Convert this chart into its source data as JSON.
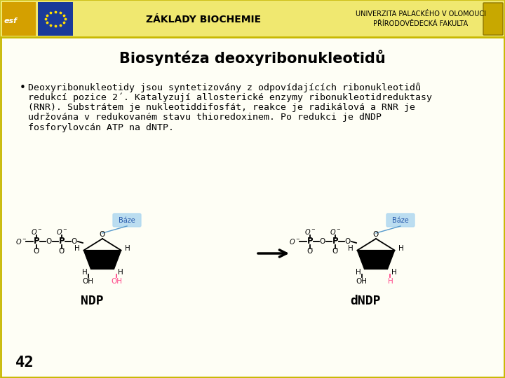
{
  "bg_color": "#fefef5",
  "header_bg": "#f0e870",
  "border_color": "#c8b800",
  "title": "Biosyntéza deoxyribonukleotidů",
  "title_fontsize": 15,
  "bullet_lines": [
    "Deoxyribonukleotidy jsou syntetizovány z odpovídajících ribonukleotidů",
    "redukcí pozice 2´. Katalyzují allosterické enzymy ribonukleotidreduktasy",
    "(RNR). Substrátem je nukleotiddifosfát, reakce je radikálová a RNR je",
    "udržována v redukovaném stavu thioredoxinem. Po redukci je dNDP",
    "fosforylovcán ATP na dNTP."
  ],
  "bullet_fontsize": 9.5,
  "page_number": "42",
  "header_center": "ZÁKLADY BIOCHEMIE",
  "header_right1": "UNIVERZITA PALACKÉHO V OLOMOUCI",
  "header_right2": "PŘÍRODOVĚDECKÁ FAKULTA",
  "ndp_label": "NDP",
  "dndp_label": "dNDP",
  "baze_label": "Báze",
  "pink_color": "#ff4488",
  "baze_bg": "#b0d8f0",
  "black": "#000000",
  "white": "#ffffff"
}
